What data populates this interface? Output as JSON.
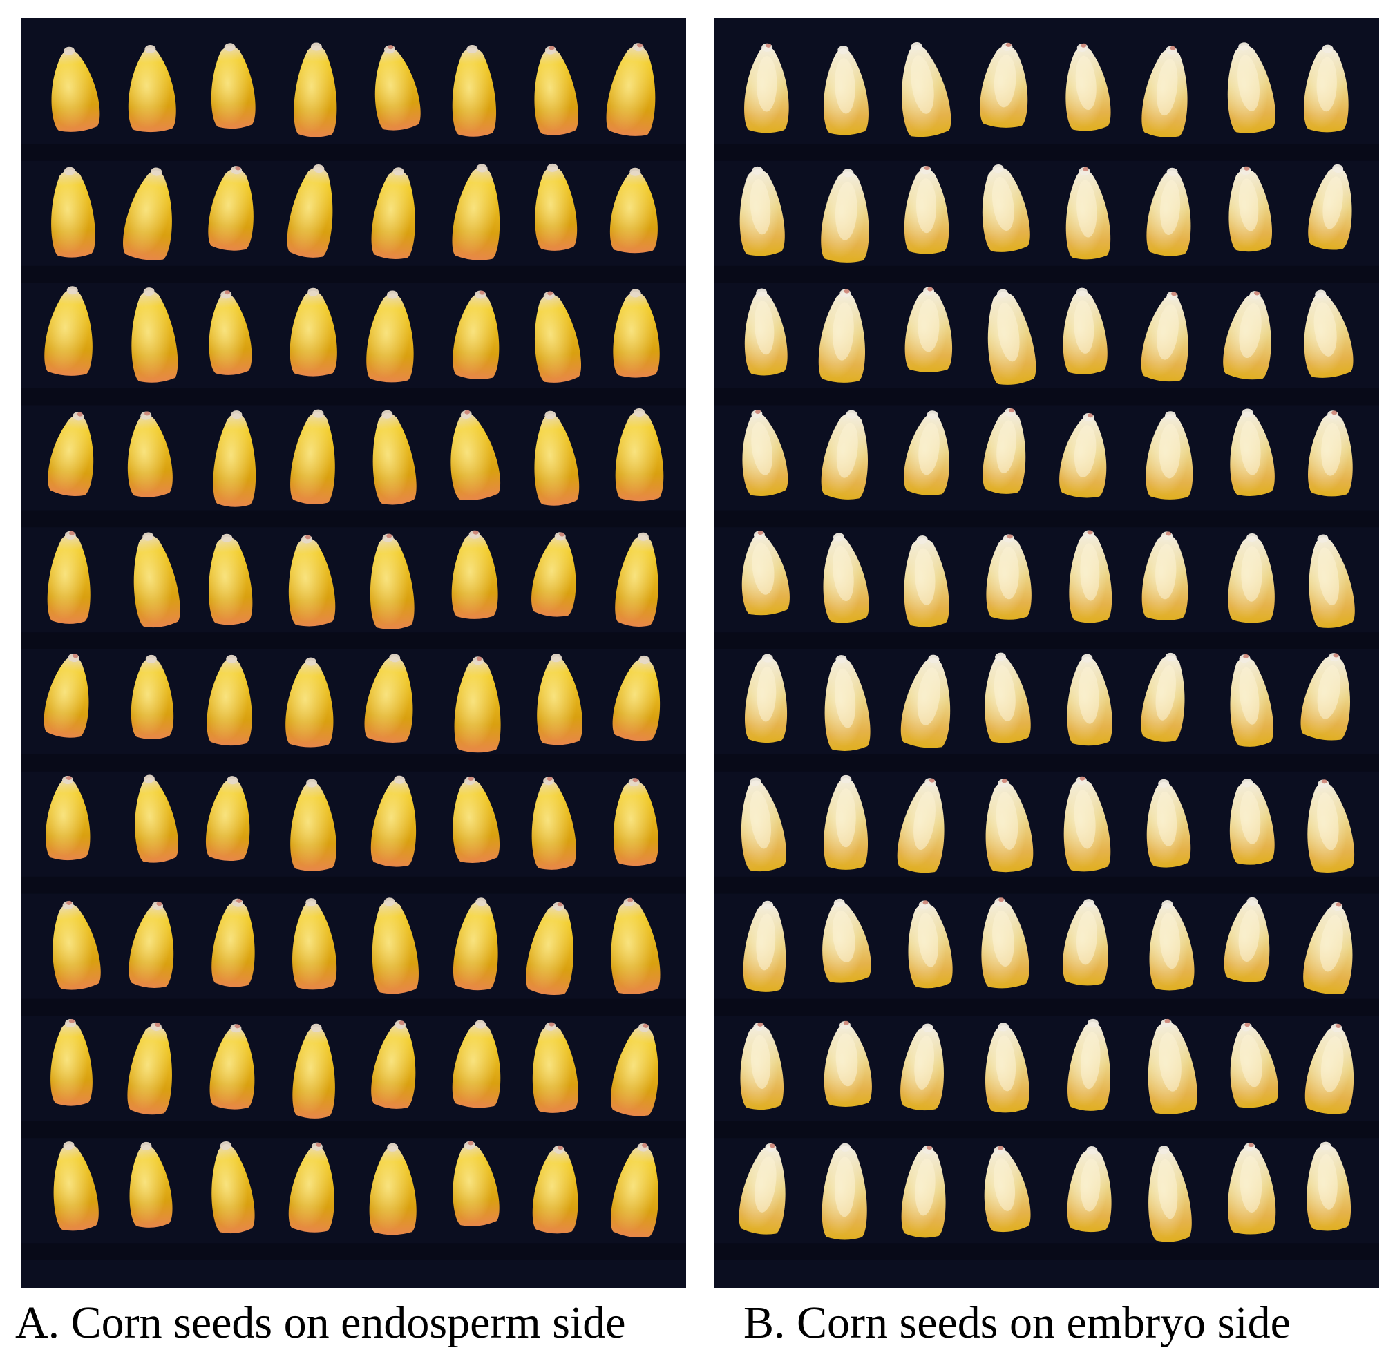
{
  "panels": [
    {
      "caption": "A. Corn seeds on endosperm side",
      "side": "endosperm",
      "rows": 10,
      "cols": 8,
      "background_color": "#0b0e20",
      "seed_colors": {
        "base": "#d9a010",
        "mid": "#f2cc2a",
        "highlight": "#fff2a0",
        "tip": "#e6d9c8",
        "blush": "#e8874a"
      }
    },
    {
      "caption": "B. Corn seeds on embryo side",
      "side": "embryo",
      "rows": 10,
      "cols": 8,
      "background_color": "#0b0e20",
      "seed_colors": {
        "base": "#e0b020",
        "mid": "#ecd68a",
        "highlight": "#fbf3d6",
        "tip": "#f2ede2",
        "blush": "#e5b24a"
      }
    }
  ]
}
